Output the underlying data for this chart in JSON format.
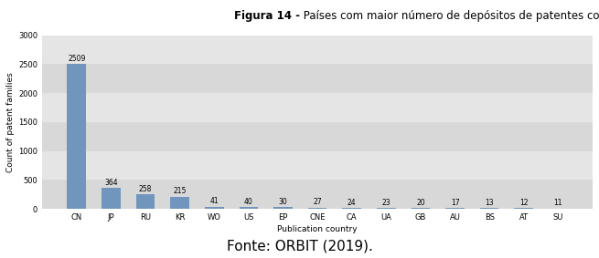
{
  "categories": [
    "CN",
    "JP",
    "RU",
    "KR",
    "WO",
    "US",
    "EP",
    "CNE",
    "CA",
    "UA",
    "GB",
    "AU",
    "BS",
    "AT",
    "SU"
  ],
  "values": [
    2509,
    364,
    258,
    215,
    41,
    40,
    30,
    27,
    24,
    23,
    20,
    17,
    13,
    12,
    11
  ],
  "bar_color": "#7096be",
  "title_bold": "Figura 14 -",
  "title_normal": " Países com maior número de depósitos de patentes com trigo sarraceno.",
  "xlabel": "Publication country",
  "ylabel": "Count of patent families",
  "ylim": [
    0,
    3000
  ],
  "yticks": [
    0,
    500,
    1000,
    1500,
    2000,
    2500,
    3000
  ],
  "fonte": "Fonte: ORBIT (2019).",
  "plot_bg_color": "#e5e5e5",
  "band_colors": [
    "#d8d8d8",
    "#e5e5e5"
  ],
  "title_fontsize": 8.5,
  "label_fontsize": 6.5,
  "tick_fontsize": 6,
  "value_fontsize": 5.5,
  "fonte_fontsize": 11
}
